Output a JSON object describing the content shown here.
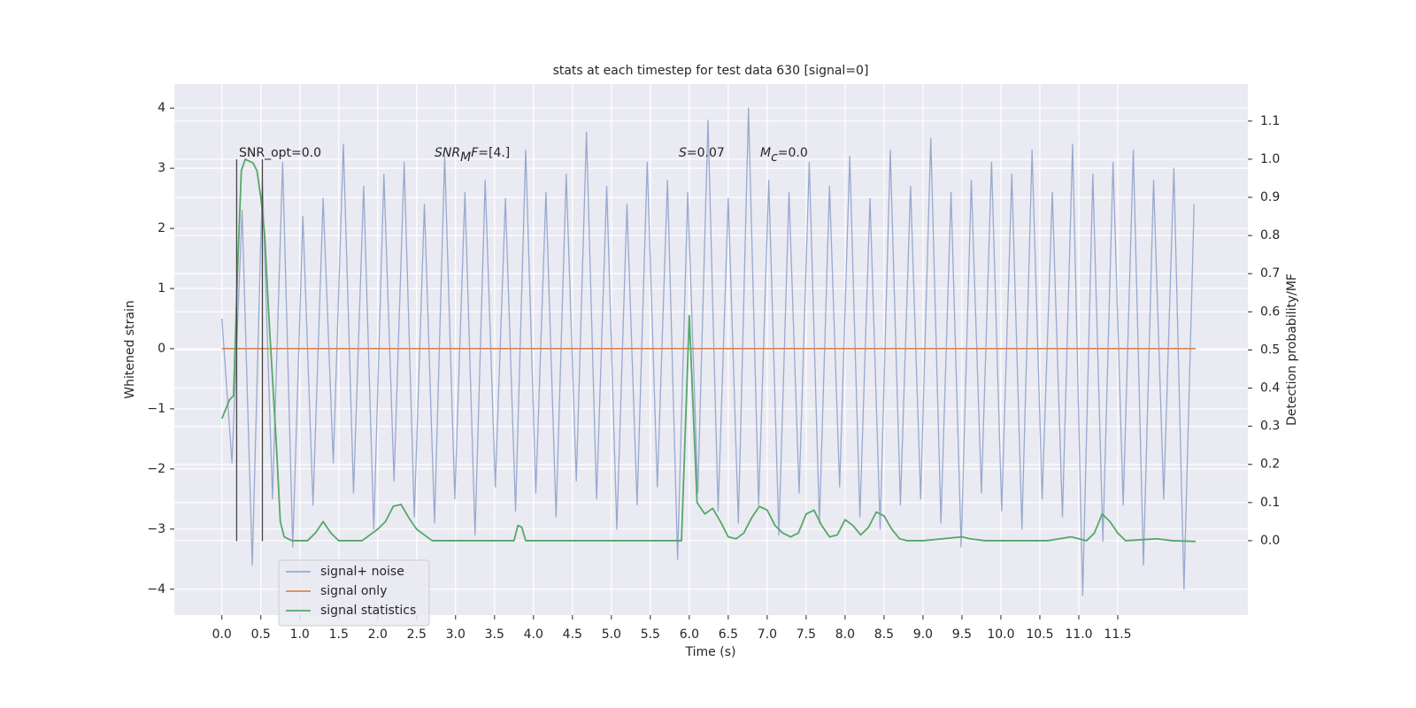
{
  "chart_data": {
    "type": "line",
    "title": "stats at each timestep for test data 630 [signal=0]",
    "xlabel": "Time (s)",
    "ylabel": "Whitened strain",
    "y2label": "Detection probability/MF",
    "xlim": [
      -0.61,
      13.17
    ],
    "ylim": [
      -4.43,
      4.4
    ],
    "y2lim": [
      -0.195,
      1.197
    ],
    "xticks": [
      {
        "value": 0,
        "label": "0.0"
      },
      0.5,
      {
        "value": 1,
        "label": "1.0"
      },
      1.5,
      {
        "value": 2,
        "label": "2.0"
      },
      2.5,
      {
        "value": 3,
        "label": "3.0"
      },
      3.5,
      {
        "value": 4,
        "label": "4.0"
      },
      4.5,
      {
        "value": 5,
        "label": "5.0"
      },
      5.5,
      {
        "value": 6,
        "label": "6.0"
      },
      6.5,
      {
        "value": 7,
        "label": "7.0"
      },
      7.5,
      {
        "value": 8,
        "label": "8.0"
      },
      8.5,
      {
        "value": 9,
        "label": "9.0"
      },
      9.5,
      {
        "value": 10,
        "label": "10.0"
      },
      10.5,
      {
        "value": 11,
        "label": "11.0"
      },
      11.5
    ],
    "yticks": [
      {
        "value": -4,
        "label": "−4"
      },
      {
        "value": -3,
        "label": "−3"
      },
      {
        "value": -2,
        "label": "−2"
      },
      {
        "value": -1,
        "label": "−1"
      },
      0,
      1,
      2,
      3,
      4
    ],
    "y2ticks": [
      {
        "value": 0,
        "label": "0.0"
      },
      0.1,
      0.2,
      0.3,
      0.4,
      0.5,
      0.6,
      0.7,
      0.8,
      0.9,
      {
        "value": 1,
        "label": "1.0"
      },
      1.1
    ],
    "grid": true,
    "legend": "lower left",
    "series": [
      {
        "name": "signal+ noise",
        "color": "#98a9cf",
        "x": [
          0,
          0.13,
          0.26,
          0.39,
          0.52,
          0.65,
          0.78,
          0.91,
          1.04,
          1.17,
          1.3,
          1.43,
          1.56,
          1.69,
          1.82,
          1.95,
          2.08,
          2.21,
          2.34,
          2.47,
          2.6,
          2.73,
          2.86,
          2.99,
          3.12,
          3.25,
          3.38,
          3.51,
          3.64,
          3.77,
          3.9,
          4.03,
          4.16,
          4.29,
          4.42,
          4.55,
          4.68,
          4.81,
          4.94,
          5.07,
          5.2,
          5.33,
          5.46,
          5.59,
          5.72,
          5.85,
          5.98,
          6.11,
          6.24,
          6.37,
          6.5,
          6.63,
          6.76,
          6.89,
          7.02,
          7.15,
          7.28,
          7.41,
          7.54,
          7.67,
          7.8,
          7.93,
          8.06,
          8.19,
          8.32,
          8.45,
          8.58,
          8.71,
          8.84,
          8.97,
          9.1,
          9.23,
          9.36,
          9.49,
          9.62,
          9.75,
          9.88,
          10.01,
          10.14,
          10.27,
          10.4,
          10.53,
          10.66,
          10.79,
          10.92,
          11.05,
          11.18,
          11.31,
          11.44,
          11.57,
          11.7,
          11.83,
          11.96,
          12.09,
          12.22,
          12.35,
          12.48
        ],
        "values": [
          0.5,
          -1.9,
          2.3,
          -3.6,
          2.8,
          -2.5,
          3.1,
          -3.3,
          2.2,
          -2.6,
          2.5,
          -1.9,
          3.4,
          -2.4,
          2.7,
          -3.0,
          2.9,
          -2.2,
          3.1,
          -2.8,
          2.4,
          -2.9,
          3.2,
          -2.5,
          2.6,
          -3.1,
          2.8,
          -2.3,
          2.5,
          -2.7,
          3.3,
          -2.4,
          2.6,
          -2.8,
          2.9,
          -2.2,
          3.6,
          -2.5,
          2.7,
          -3.0,
          2.4,
          -2.6,
          3.1,
          -2.3,
          2.8,
          -3.5,
          2.6,
          -2.4,
          3.8,
          -2.7,
          2.5,
          -2.9,
          4.0,
          -2.6,
          2.8,
          -3.1,
          2.6,
          -2.4,
          3.1,
          -2.9,
          2.7,
          -2.3,
          3.2,
          -2.8,
          2.5,
          -3.0,
          3.3,
          -2.6,
          2.7,
          -2.5,
          3.5,
          -2.9,
          2.6,
          -3.3,
          2.8,
          -2.4,
          3.1,
          -2.7,
          2.9,
          -3.0,
          3.3,
          -2.5,
          2.6,
          -2.8,
          3.4,
          -4.1,
          2.9,
          -3.2,
          3.1,
          -2.6,
          3.3,
          -3.6,
          2.8,
          -2.5,
          3.0,
          -4.0,
          2.4
        ]
      },
      {
        "name": "signal only",
        "color": "#dd8452",
        "x": [
          0,
          12.5
        ],
        "values": [
          0,
          0
        ]
      },
      {
        "name": "signal statistics",
        "color": "#55a868",
        "axis": "y2",
        "x": [
          0,
          0.1,
          0.15,
          0.2,
          0.25,
          0.3,
          0.4,
          0.45,
          0.5,
          0.55,
          0.6,
          0.7,
          0.75,
          0.8,
          0.9,
          1.1,
          1.2,
          1.3,
          1.4,
          1.5,
          1.8,
          2.0,
          2.1,
          2.2,
          2.3,
          2.4,
          2.5,
          2.7,
          3.5,
          3.75,
          3.8,
          3.85,
          3.9,
          4.2,
          5.9,
          6.0,
          6.1,
          6.2,
          6.3,
          6.4,
          6.5,
          6.6,
          6.7,
          6.8,
          6.9,
          7.0,
          7.1,
          7.2,
          7.3,
          7.4,
          7.5,
          7.6,
          7.7,
          7.8,
          7.9,
          8.0,
          8.1,
          8.2,
          8.3,
          8.4,
          8.5,
          8.6,
          8.7,
          8.8,
          9.0,
          9.5,
          9.6,
          9.8,
          10.6,
          10.9,
          11.0,
          11.1,
          11.2,
          11.3,
          11.4,
          11.5,
          11.6,
          12.0,
          12.2,
          12.5
        ],
        "values": [
          0.32,
          0.37,
          0.38,
          0.7,
          0.97,
          1.0,
          0.99,
          0.97,
          0.9,
          0.8,
          0.6,
          0.25,
          0.05,
          0.01,
          0.0,
          0.0,
          0.02,
          0.05,
          0.02,
          0.0,
          0.0,
          0.03,
          0.05,
          0.09,
          0.095,
          0.06,
          0.03,
          0.0,
          0.0,
          0.0,
          0.04,
          0.035,
          0.0,
          0.0,
          0.0,
          0.59,
          0.1,
          0.07,
          0.085,
          0.05,
          0.01,
          0.005,
          0.02,
          0.06,
          0.09,
          0.08,
          0.04,
          0.02,
          0.01,
          0.02,
          0.07,
          0.08,
          0.04,
          0.01,
          0.015,
          0.055,
          0.04,
          0.015,
          0.035,
          0.075,
          0.065,
          0.03,
          0.005,
          0.0,
          0.0,
          0.01,
          0.005,
          0.0,
          0.0,
          0.01,
          0.005,
          0.0,
          0.02,
          0.07,
          0.05,
          0.02,
          0.0,
          0.005,
          0.0,
          -0.002
        ]
      }
    ],
    "vlines": {
      "x": [
        0.19,
        0.52
      ],
      "ymin": -3.2,
      "ymax": 3.15,
      "color": "#444444"
    },
    "annotations": [
      {
        "parts": [
          {
            "text": "SNR_opt=0.0"
          }
        ]
      },
      {
        "parts": [
          {
            "text": "SNR",
            "style": "italic"
          },
          {
            "text": "M",
            "style": "italic-sub"
          },
          {
            "text": "F",
            "style": "italic"
          },
          {
            "text": "=[4.]"
          }
        ]
      },
      {
        "parts": [
          {
            "text": "S",
            "style": "italic"
          },
          {
            "text": "=0.07"
          }
        ]
      },
      {
        "parts": [
          {
            "text": "M",
            "style": "italic"
          },
          {
            "text": "c",
            "style": "italic-sub"
          },
          {
            "text": "=0.0"
          }
        ]
      }
    ]
  }
}
